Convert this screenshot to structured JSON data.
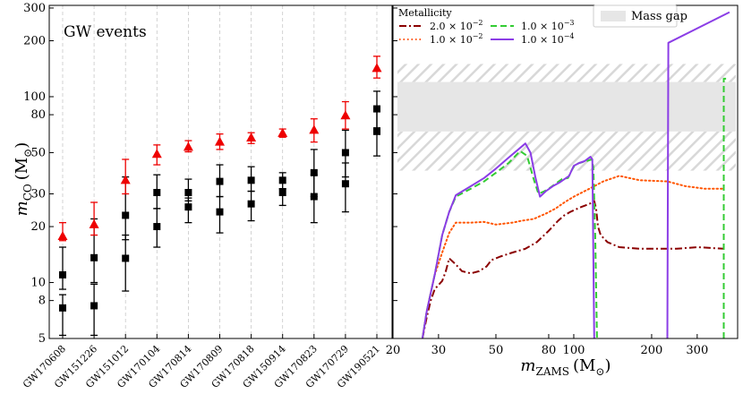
{
  "chart_data": [
    {
      "type": "scatter",
      "panel": "left",
      "annotation": "GW events",
      "ylabel": "m_CO (M_⊙)",
      "ylabel_main": "m",
      "ylabel_sub": "CO",
      "ylabel_unit": "(M",
      "ylabel_unit_sub": "⊙",
      "ylabel_close": ")",
      "yscale": "log",
      "ylim": [
        5,
        310
      ],
      "yticks": [
        5,
        8,
        10,
        20,
        30,
        50,
        80,
        100,
        200,
        300
      ],
      "categories": [
        "GW170608",
        "GW151226",
        "GW151012",
        "GW170104",
        "GW170814",
        "GW170809",
        "GW170818",
        "GW150914",
        "GW170823",
        "GW170729",
        "GW190521"
      ],
      "series": [
        {
          "marker": "square",
          "color": "#000000",
          "points": [
            {
              "cat": 0,
              "y": 11.0,
              "lo": 9.2,
              "hi": 15.5
            },
            {
              "cat": 0,
              "y": 7.3,
              "lo": 5.2,
              "hi": 8.6
            },
            {
              "cat": 1,
              "y": 13.6,
              "lo": 10.0,
              "hi": 22.0
            },
            {
              "cat": 1,
              "y": 7.5,
              "lo": 5.2,
              "hi": 9.8
            },
            {
              "cat": 2,
              "y": 23.0,
              "lo": 17.0,
              "hi": 37.0
            },
            {
              "cat": 2,
              "y": 13.5,
              "lo": 9.0,
              "hi": 18.0
            },
            {
              "cat": 3,
              "y": 30.5,
              "lo": 25.0,
              "hi": 38.0
            },
            {
              "cat": 3,
              "y": 20.0,
              "lo": 15.5,
              "hi": 25.0
            },
            {
              "cat": 4,
              "y": 30.5,
              "lo": 27.5,
              "hi": 36.0
            },
            {
              "cat": 4,
              "y": 25.5,
              "lo": 21.0,
              "hi": 28.5
            },
            {
              "cat": 5,
              "y": 35.0,
              "lo": 29.0,
              "hi": 43.0
            },
            {
              "cat": 5,
              "y": 24.0,
              "lo": 18.5,
              "hi": 29.0
            },
            {
              "cat": 6,
              "y": 35.5,
              "lo": 31.0,
              "hi": 42.0
            },
            {
              "cat": 6,
              "y": 26.5,
              "lo": 21.5,
              "hi": 31.0
            },
            {
              "cat": 7,
              "y": 35.5,
              "lo": 32.0,
              "hi": 39.0
            },
            {
              "cat": 7,
              "y": 30.5,
              "lo": 26.0,
              "hi": 32.0
            },
            {
              "cat": 8,
              "y": 39.0,
              "lo": 29.0,
              "hi": 52.0
            },
            {
              "cat": 8,
              "y": 29.0,
              "lo": 21.0,
              "hi": 38.0
            },
            {
              "cat": 9,
              "y": 50.0,
              "lo": 37.0,
              "hi": 66.0
            },
            {
              "cat": 9,
              "y": 34.0,
              "lo": 24.0,
              "hi": 44.0
            },
            {
              "cat": 10,
              "y": 86.0,
              "lo": 68.0,
              "hi": 107.0
            },
            {
              "cat": 10,
              "y": 65.0,
              "lo": 48.0,
              "hi": 84.0
            }
          ]
        },
        {
          "marker": "triangle",
          "color": "#ee0000",
          "points": [
            {
              "cat": 0,
              "y": 17.7,
              "lo": 16.8,
              "hi": 21.0
            },
            {
              "cat": 1,
              "y": 20.5,
              "lo": 18.0,
              "hi": 27.0
            },
            {
              "cat": 2,
              "y": 35.5,
              "lo": 30.0,
              "hi": 46.0
            },
            {
              "cat": 3,
              "y": 49.0,
              "lo": 43.0,
              "hi": 55.0
            },
            {
              "cat": 4,
              "y": 53.5,
              "lo": 50.5,
              "hi": 58.0
            },
            {
              "cat": 5,
              "y": 57.0,
              "lo": 52.0,
              "hi": 63.0
            },
            {
              "cat": 6,
              "y": 60.0,
              "lo": 56.0,
              "hi": 64.0
            },
            {
              "cat": 7,
              "y": 63.5,
              "lo": 60.5,
              "hi": 67.0
            },
            {
              "cat": 8,
              "y": 66.0,
              "lo": 57.0,
              "hi": 76.0
            },
            {
              "cat": 9,
              "y": 79.0,
              "lo": 67.0,
              "hi": 94.0
            },
            {
              "cat": 10,
              "y": 142.0,
              "lo": 126.0,
              "hi": 165.0
            }
          ]
        }
      ]
    },
    {
      "type": "line",
      "panel": "right",
      "xlabel": "m_ZAMS (M_⊙)",
      "xlabel_main": "m",
      "xlabel_sub": "ZAMS",
      "xlabel_unit": "(M",
      "xlabel_unit_sub": "⊙",
      "xlabel_close": ")",
      "xscale": "log",
      "yscale": "log",
      "xlim": [
        20,
        430
      ],
      "ylim": [
        5,
        310
      ],
      "xticks": [
        20,
        30,
        50,
        80,
        100,
        200,
        300
      ],
      "legend": {
        "title": "Metallicity",
        "placement": "top-left",
        "entries": [
          {
            "mantissa": "2.0",
            "exponent": "−2",
            "series": 0
          },
          {
            "mantissa": "1.0",
            "exponent": "−2",
            "series": 1
          },
          {
            "mantissa": "1.0",
            "exponent": "−3",
            "series": 2
          },
          {
            "mantissa": "1.0",
            "exponent": "−4",
            "series": 3
          }
        ]
      },
      "mass_gap": {
        "label": "Mass gap",
        "solid": [
          65,
          120
        ],
        "hatched": [
          [
            40,
            65
          ],
          [
            120,
            150
          ]
        ]
      },
      "series": [
        {
          "metallicity": "2.0e-2",
          "color": "#8b0000",
          "style": "dashdot",
          "points": [
            [
              26,
              5
            ],
            [
              27,
              6.5
            ],
            [
              28,
              8
            ],
            [
              29,
              9.2
            ],
            [
              31,
              10.2
            ],
            [
              32,
              11.5
            ],
            [
              33,
              13.5
            ],
            [
              35,
              12.5
            ],
            [
              37,
              11.5
            ],
            [
              40,
              11.2
            ],
            [
              43,
              11.5
            ],
            [
              46,
              12.2
            ],
            [
              48,
              13.2
            ],
            [
              52,
              13.8
            ],
            [
              58,
              14.5
            ],
            [
              65,
              15.2
            ],
            [
              72,
              16.5
            ],
            [
              80,
              19
            ],
            [
              87,
              21.5
            ],
            [
              92,
              23
            ],
            [
              97,
              24
            ],
            [
              100,
              24.5
            ],
            [
              107,
              25.5
            ],
            [
              115,
              26.5
            ],
            [
              120,
              27.5
            ],
            [
              122,
              25
            ],
            [
              124,
              20
            ],
            [
              127,
              18
            ],
            [
              135,
              16.5
            ],
            [
              150,
              15.5
            ],
            [
              180,
              15.2
            ],
            [
              250,
              15.2
            ],
            [
              300,
              15.5
            ],
            [
              380,
              15.2
            ]
          ]
        },
        {
          "metallicity": "1.0e-2",
          "color": "#ff5500",
          "style": "dotted",
          "points": [
            [
              26,
              5
            ],
            [
              27,
              7
            ],
            [
              29,
              11
            ],
            [
              31,
              14.5
            ],
            [
              33,
              18.5
            ],
            [
              35,
              21
            ],
            [
              40,
              21
            ],
            [
              45,
              21.2
            ],
            [
              50,
              20.5
            ],
            [
              58,
              21
            ],
            [
              63,
              21.5
            ],
            [
              70,
              22
            ],
            [
              78,
              23.5
            ],
            [
              85,
              25
            ],
            [
              92,
              27
            ],
            [
              100,
              29
            ],
            [
              115,
              32
            ],
            [
              130,
              35
            ],
            [
              150,
              37.5
            ],
            [
              180,
              35.5
            ],
            [
              230,
              35
            ],
            [
              270,
              33
            ],
            [
              320,
              32
            ],
            [
              380,
              32
            ]
          ]
        },
        {
          "metallicity": "1.0e-3",
          "color": "#33cc33",
          "style": "dashed",
          "points": [
            [
              26,
              5
            ],
            [
              27,
              7
            ],
            [
              29,
              11
            ],
            [
              31,
              18
            ],
            [
              33,
              24
            ],
            [
              35,
              29
            ],
            [
              40,
              32
            ],
            [
              45,
              35
            ],
            [
              50,
              39
            ],
            [
              56,
              44
            ],
            [
              62,
              51
            ],
            [
              66,
              48
            ],
            [
              70,
              36
            ],
            [
              73,
              30
            ],
            [
              77,
              31
            ],
            [
              80,
              32
            ],
            [
              85,
              34
            ],
            [
              90,
              36
            ],
            [
              95,
              36.5
            ],
            [
              98,
              40
            ],
            [
              101,
              43
            ],
            [
              105,
              44
            ],
            [
              112,
              45
            ],
            [
              117,
              46
            ],
            [
              119,
              42
            ],
            [
              121,
              18
            ],
            [
              123,
              5
            ],
            null,
            [
              380,
              5
            ],
            [
              380,
              15
            ],
            [
              380,
              60
            ],
            [
              380,
              125
            ],
            [
              388,
              125
            ]
          ]
        },
        {
          "metallicity": "1.0e-4",
          "color": "#8b3de6",
          "style": "solid",
          "points": [
            [
              26,
              5
            ],
            [
              27,
              7
            ],
            [
              29,
              11
            ],
            [
              31,
              18
            ],
            [
              33,
              24
            ],
            [
              35,
              29.5
            ],
            [
              40,
              33
            ],
            [
              45,
              36.5
            ],
            [
              50,
              41
            ],
            [
              56,
              47
            ],
            [
              62,
              53
            ],
            [
              65,
              56
            ],
            [
              68,
              50
            ],
            [
              71,
              37
            ],
            [
              74,
              29
            ],
            [
              78,
              31
            ],
            [
              83,
              33
            ],
            [
              88,
              34.5
            ],
            [
              92,
              36
            ],
            [
              96,
              37.5
            ],
            [
              98,
              40
            ],
            [
              100,
              42.5
            ],
            [
              105,
              44
            ],
            [
              110,
              45
            ],
            [
              116,
              47.5
            ],
            [
              118,
              46
            ],
            [
              120,
              5
            ],
            null,
            [
              230,
              5
            ],
            [
              232,
              195
            ],
            [
              400,
              285
            ]
          ]
        }
      ]
    }
  ]
}
